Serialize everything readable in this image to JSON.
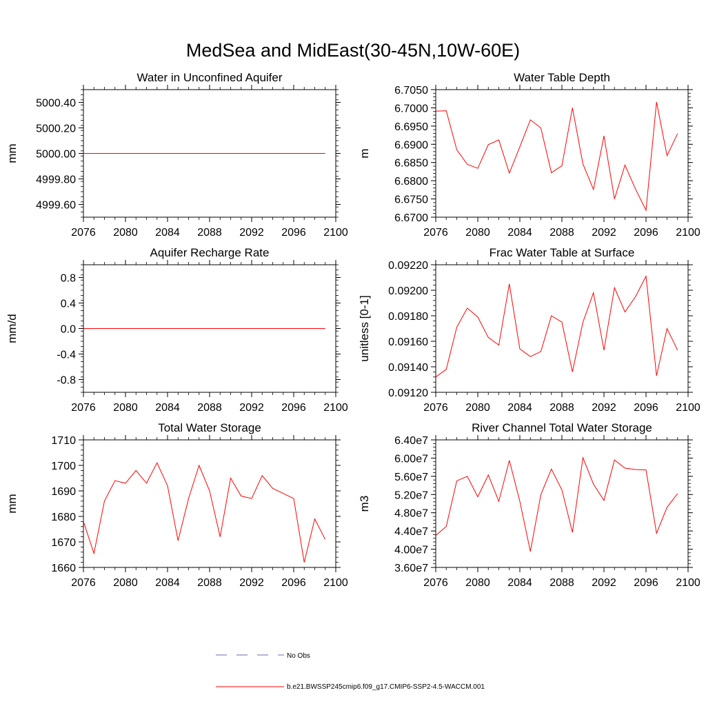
{
  "title": "MedSea and MidEast(30-45N,10W-60E)",
  "colors": {
    "model": "#ff0000",
    "obs": "#6a6aa8",
    "axis": "#000000"
  },
  "legend": [
    {
      "label": "No Obs",
      "style": "dashed",
      "color": "#6a6aa8"
    },
    {
      "label": "b.e21.BWSSP245cmip6.f09_g17.CMIP6-SSP2-4.5-WACCM.001",
      "style": "solid",
      "color": "#ff0000"
    }
  ],
  "chart_data": [
    {
      "type": "line",
      "title": "Water in Unconfined Aquifer",
      "xlabel": "",
      "ylabel": "mm",
      "xlim": [
        2076,
        2100
      ],
      "xticks": [
        2076,
        2080,
        2084,
        2088,
        2092,
        2096,
        2100
      ],
      "xtick_labels": [
        "2076",
        "2080",
        "2084",
        "2088",
        "2092",
        "2096",
        "2100"
      ],
      "ylim": [
        4999.5,
        5000.5
      ],
      "yticks": [
        4999.6,
        4999.8,
        5000.0,
        5000.2,
        5000.4
      ],
      "ytick_labels": [
        "4999.60",
        "4999.80",
        "5000.00",
        "5000.20",
        "5000.40"
      ],
      "x": [
        2076,
        2077,
        2078,
        2079,
        2080,
        2081,
        2082,
        2083,
        2084,
        2085,
        2086,
        2087,
        2088,
        2089,
        2090,
        2091,
        2092,
        2093,
        2094,
        2095,
        2096,
        2097,
        2098,
        2099
      ],
      "series": [
        {
          "name": "b.e21.BWSSP245cmip6.f09_g17.CMIP6-SSP2-4.5-WACCM.001",
          "values": [
            5000.0,
            5000.0,
            5000.0,
            5000.0,
            5000.0,
            5000.0,
            5000.0,
            5000.0,
            5000.0,
            5000.0,
            5000.0,
            5000.0,
            5000.0,
            5000.0,
            5000.0,
            5000.0,
            5000.0,
            5000.0,
            5000.0,
            5000.0,
            5000.0,
            5000.0,
            5000.0,
            5000.0
          ]
        }
      ]
    },
    {
      "type": "line",
      "title": "Water Table Depth",
      "xlabel": "",
      "ylabel": "m",
      "xlim": [
        2076,
        2100
      ],
      "xticks": [
        2076,
        2080,
        2084,
        2088,
        2092,
        2096,
        2100
      ],
      "xtick_labels": [
        "2076",
        "2080",
        "2084",
        "2088",
        "2092",
        "2096",
        "2100"
      ],
      "ylim": [
        6.67,
        6.705
      ],
      "yticks": [
        6.67,
        6.675,
        6.68,
        6.685,
        6.69,
        6.695,
        6.7,
        6.705
      ],
      "ytick_labels": [
        "6.6700",
        "6.6750",
        "6.6800",
        "6.6850",
        "6.6900",
        "6.6950",
        "6.7000",
        "6.7050"
      ],
      "x": [
        2076,
        2077,
        2078,
        2079,
        2080,
        2081,
        2082,
        2083,
        2084,
        2085,
        2086,
        2087,
        2088,
        2089,
        2090,
        2091,
        2092,
        2093,
        2094,
        2095,
        2096,
        2097,
        2098,
        2099
      ],
      "series": [
        {
          "name": "b.e21.BWSSP245cmip6.f09_g17.CMIP6-SSP2-4.5-WACCM.001",
          "values": [
            6.6991,
            6.6992,
            6.6885,
            6.6845,
            6.6834,
            6.6899,
            6.6912,
            6.6821,
            6.6893,
            6.6967,
            6.6945,
            6.6822,
            6.6841,
            6.7,
            6.6846,
            6.6776,
            6.6923,
            6.675,
            6.6843,
            6.6777,
            6.6719,
            6.7016,
            6.6869,
            6.6929
          ]
        }
      ]
    },
    {
      "type": "line",
      "title": "Aquifer Recharge Rate",
      "xlabel": "",
      "ylabel": "mm/d",
      "xlim": [
        2076,
        2100
      ],
      "xticks": [
        2076,
        2080,
        2084,
        2088,
        2092,
        2096,
        2100
      ],
      "xtick_labels": [
        "2076",
        "2080",
        "2084",
        "2088",
        "2092",
        "2096",
        "2100"
      ],
      "ylim": [
        -1.0,
        1.0
      ],
      "yticks": [
        -0.8,
        -0.4,
        0.0,
        0.4,
        0.8
      ],
      "ytick_labels": [
        "-0.8",
        "-0.4",
        "0.0",
        "0.4",
        "0.8"
      ],
      "x": [
        2076,
        2077,
        2078,
        2079,
        2080,
        2081,
        2082,
        2083,
        2084,
        2085,
        2086,
        2087,
        2088,
        2089,
        2090,
        2091,
        2092,
        2093,
        2094,
        2095,
        2096,
        2097,
        2098,
        2099
      ],
      "series": [
        {
          "name": "b.e21.BWSSP245cmip6.f09_g17.CMIP6-SSP2-4.5-WACCM.001",
          "values": [
            0.0,
            0.0,
            0.0,
            0.0,
            0.0,
            0.0,
            0.0,
            0.0,
            0.0,
            0.0,
            0.0,
            0.0,
            0.0,
            0.0,
            0.0,
            0.0,
            0.0,
            0.0,
            0.0,
            0.0,
            0.0,
            0.0,
            0.0,
            0.0
          ]
        }
      ]
    },
    {
      "type": "line",
      "title": "Frac Water Table at Surface",
      "xlabel": "",
      "ylabel": "unitless [0-1]",
      "xlim": [
        2076,
        2100
      ],
      "xticks": [
        2076,
        2080,
        2084,
        2088,
        2092,
        2096,
        2100
      ],
      "xtick_labels": [
        "2076",
        "2080",
        "2084",
        "2088",
        "2092",
        "2096",
        "2100"
      ],
      "ylim": [
        0.0912,
        0.0922
      ],
      "yticks": [
        0.0912,
        0.0914,
        0.0916,
        0.0918,
        0.092,
        0.0922
      ],
      "ytick_labels": [
        "0.09120",
        "0.09140",
        "0.09160",
        "0.09180",
        "0.09200",
        "0.09220"
      ],
      "x": [
        2076,
        2077,
        2078,
        2079,
        2080,
        2081,
        2082,
        2083,
        2084,
        2085,
        2086,
        2087,
        2088,
        2089,
        2090,
        2091,
        2092,
        2093,
        2094,
        2095,
        2096,
        2097,
        2098,
        2099
      ],
      "series": [
        {
          "name": "b.e21.BWSSP245cmip6.f09_g17.CMIP6-SSP2-4.5-WACCM.001",
          "values": [
            0.09132,
            0.09138,
            0.09171,
            0.09186,
            0.09179,
            0.09163,
            0.09157,
            0.09205,
            0.09154,
            0.09148,
            0.09152,
            0.0918,
            0.09175,
            0.09136,
            0.09175,
            0.09198,
            0.09153,
            0.09202,
            0.09183,
            0.09195,
            0.09211,
            0.09133,
            0.0917,
            0.09153
          ]
        }
      ]
    },
    {
      "type": "line",
      "title": "Total Water Storage",
      "xlabel": "",
      "ylabel": "mm",
      "xlim": [
        2076,
        2100
      ],
      "xticks": [
        2076,
        2080,
        2084,
        2088,
        2092,
        2096,
        2100
      ],
      "xtick_labels": [
        "2076",
        "2080",
        "2084",
        "2088",
        "2092",
        "2096",
        "2100"
      ],
      "ylim": [
        1660,
        1710
      ],
      "yticks": [
        1660,
        1670,
        1680,
        1690,
        1700,
        1710
      ],
      "ytick_labels": [
        "1660",
        "1670",
        "1680",
        "1690",
        "1700",
        "1710"
      ],
      "x": [
        2076,
        2077,
        2078,
        2079,
        2080,
        2081,
        2082,
        2083,
        2084,
        2085,
        2086,
        2087,
        2088,
        2089,
        2090,
        2091,
        2092,
        2093,
        2094,
        2095,
        2096,
        2097,
        2098,
        2099
      ],
      "series": [
        {
          "name": "b.e21.BWSSP245cmip6.f09_g17.CMIP6-SSP2-4.5-WACCM.001",
          "values": [
            1678,
            1665.5,
            1686,
            1694,
            1693,
            1698,
            1693,
            1701,
            1692,
            1670.5,
            1687,
            1700,
            1690,
            1672,
            1695,
            1688,
            1687,
            1696,
            1691,
            1689,
            1687,
            1662,
            1679,
            1671
          ]
        }
      ]
    },
    {
      "type": "line",
      "title": "River Channel Total Water Storage",
      "xlabel": "",
      "ylabel": "m3",
      "xlim": [
        2076,
        2100
      ],
      "xticks": [
        2076,
        2080,
        2084,
        2088,
        2092,
        2096,
        2100
      ],
      "xtick_labels": [
        "2076",
        "2080",
        "2084",
        "2088",
        "2092",
        "2096",
        "2100"
      ],
      "ylim": [
        36000000,
        64000000
      ],
      "yticks": [
        36000000,
        40000000,
        44000000,
        48000000,
        52000000,
        56000000,
        60000000,
        64000000
      ],
      "ytick_labels": [
        "3.60e7",
        "4.00e7",
        "4.40e7",
        "4.80e7",
        "5.20e7",
        "5.60e7",
        "6.00e7",
        "6.40e7"
      ],
      "x": [
        2076,
        2077,
        2078,
        2079,
        2080,
        2081,
        2082,
        2083,
        2084,
        2085,
        2086,
        2087,
        2088,
        2089,
        2090,
        2091,
        2092,
        2093,
        2094,
        2095,
        2096,
        2097,
        2098,
        2099
      ],
      "series": [
        {
          "name": "b.e21.BWSSP245cmip6.f09_g17.CMIP6-SSP2-4.5-WACCM.001",
          "values": [
            43000000,
            45000000,
            55000000,
            56000000,
            51500000,
            56300000,
            50500000,
            59500000,
            50500000,
            39500000,
            52000000,
            57600000,
            53000000,
            43700000,
            60100000,
            54300000,
            50700000,
            59600000,
            57800000,
            57500000,
            57400000,
            43500000,
            49200000,
            52200000
          ]
        }
      ]
    }
  ]
}
